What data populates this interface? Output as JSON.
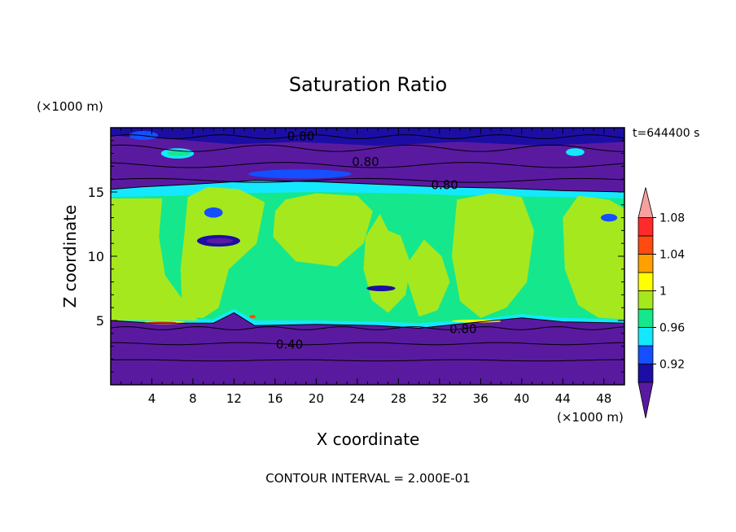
{
  "chart_data": {
    "type": "heatmap",
    "title": "Saturation Ratio",
    "xlabel": "X coordinate",
    "ylabel": "Z coordinate",
    "x_unit": "(×1000 m)",
    "y_unit": "(×1000 m)",
    "time_label": "t=644400 s",
    "footer": "CONTOUR INTERVAL = 2.000E-01",
    "xlim": [
      0,
      50
    ],
    "ylim": [
      0,
      20
    ],
    "x_ticks": [
      4,
      8,
      12,
      16,
      20,
      24,
      28,
      32,
      36,
      40,
      44,
      48
    ],
    "y_ticks": [
      5,
      10,
      15
    ],
    "colorbar": {
      "labels": [
        "0.92",
        "0.96",
        "1",
        "1.04",
        "1.08"
      ],
      "colors": [
        "#5a1aa0",
        "#1c0ea4",
        "#1450ff",
        "#14e8ff",
        "#15e88c",
        "#a6e81e",
        "#ffff00",
        "#ffa000",
        "#ff4a10",
        "#ff2a2a",
        "#f6a0a0"
      ]
    },
    "contour_labels": [
      {
        "text": "0.80",
        "x": 18.5,
        "z": 19.4
      },
      {
        "text": "0.80",
        "x": 24.8,
        "z": 17.4
      },
      {
        "text": "0.80",
        "x": 32.5,
        "z": 15.6
      },
      {
        "text": "0.80",
        "x": 34.3,
        "z": 4.4
      },
      {
        "text": "0.40",
        "x": 17.4,
        "z": 3.2
      }
    ]
  }
}
